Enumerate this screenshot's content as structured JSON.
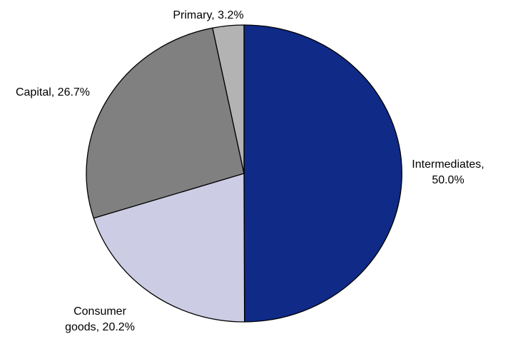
{
  "chart_data": {
    "type": "pie",
    "start": "top",
    "direction": "clockwise",
    "slices": [
      {
        "label": "Intermediates",
        "value": 50.0,
        "color": "#0f2a87",
        "label_lines": [
          "Intermediates,",
          "50.0%"
        ]
      },
      {
        "label": "Consumer goods",
        "value": 20.2,
        "color": "#cccce4",
        "label_lines": [
          "Consumer",
          "goods, 20.2%"
        ]
      },
      {
        "label": "Capital",
        "value": 26.7,
        "color": "#808080",
        "label_lines": [
          "Capital, 26.7%"
        ]
      },
      {
        "label": "Primary",
        "value": 3.2,
        "color": "#b3b3b3",
        "label_lines": [
          "Primary, 3.2%"
        ]
      }
    ],
    "stroke_color": "#000000"
  }
}
